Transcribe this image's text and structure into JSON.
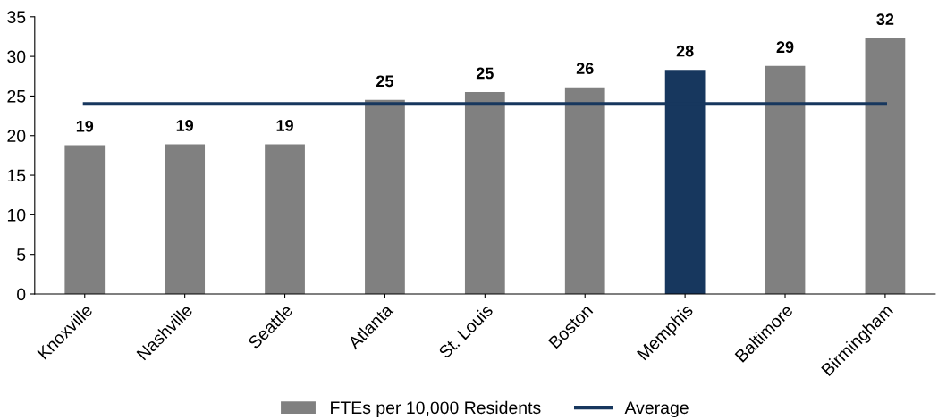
{
  "chart_data": {
    "type": "bar",
    "categories": [
      "Knoxville",
      "Nashville",
      "Seattle",
      "Atlanta",
      "St. Louis",
      "Boston",
      "Memphis",
      "Baltimore",
      "Birmingham"
    ],
    "series": [
      {
        "name": "FTEs per 10,000 Residents",
        "color": "#808080",
        "colors": [
          "#808080",
          "#808080",
          "#808080",
          "#808080",
          "#808080",
          "#808080",
          "#17375e",
          "#808080",
          "#808080"
        ],
        "values": [
          18.8,
          18.9,
          18.9,
          24.5,
          25.5,
          26.1,
          28.3,
          28.8,
          32.3
        ],
        "value_labels": [
          "19",
          "19",
          "19",
          "25",
          "25",
          "26",
          "28",
          "29",
          "32"
        ]
      },
      {
        "name": "Average",
        "type": "line",
        "color": "#17375e",
        "values": [
          24,
          24,
          24,
          24,
          24,
          24,
          24,
          24,
          24
        ]
      }
    ],
    "ylim": [
      0,
      35
    ],
    "yticks": [
      0,
      5,
      10,
      15,
      20,
      25,
      30,
      35
    ],
    "grid": false,
    "legend": "bottom",
    "marker": "none",
    "line_style": "solid"
  }
}
